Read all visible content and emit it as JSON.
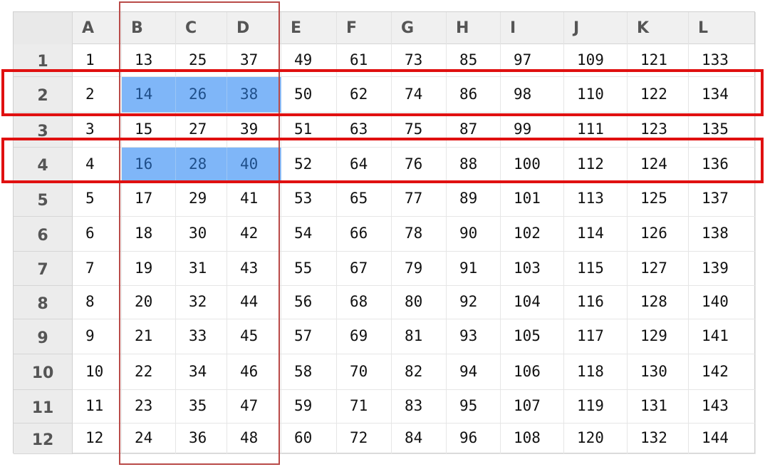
{
  "columns": [
    "A",
    "B",
    "C",
    "D",
    "E",
    "F",
    "G",
    "H",
    "I",
    "J",
    "K",
    "L"
  ],
  "rows": [
    {
      "label": "1",
      "values": [
        "1",
        "13",
        "25",
        "37",
        "49",
        "61",
        "73",
        "85",
        "97",
        "109",
        "121",
        "133"
      ]
    },
    {
      "label": "2",
      "values": [
        "2",
        "14",
        "26",
        "38",
        "50",
        "62",
        "74",
        "86",
        "98",
        "110",
        "122",
        "134"
      ]
    },
    {
      "label": "3",
      "values": [
        "3",
        "15",
        "27",
        "39",
        "51",
        "63",
        "75",
        "87",
        "99",
        "111",
        "123",
        "135"
      ]
    },
    {
      "label": "4",
      "values": [
        "4",
        "16",
        "28",
        "40",
        "52",
        "64",
        "76",
        "88",
        "100",
        "112",
        "124",
        "136"
      ]
    },
    {
      "label": "5",
      "values": [
        "5",
        "17",
        "29",
        "41",
        "53",
        "65",
        "77",
        "89",
        "101",
        "113",
        "125",
        "137"
      ]
    },
    {
      "label": "6",
      "values": [
        "6",
        "18",
        "30",
        "42",
        "54",
        "66",
        "78",
        "90",
        "102",
        "114",
        "126",
        "138"
      ]
    },
    {
      "label": "7",
      "values": [
        "7",
        "19",
        "31",
        "43",
        "55",
        "67",
        "79",
        "91",
        "103",
        "115",
        "127",
        "139"
      ]
    },
    {
      "label": "8",
      "values": [
        "8",
        "20",
        "32",
        "44",
        "56",
        "68",
        "80",
        "92",
        "104",
        "116",
        "128",
        "140"
      ]
    },
    {
      "label": "9",
      "values": [
        "9",
        "21",
        "33",
        "45",
        "57",
        "69",
        "81",
        "93",
        "105",
        "117",
        "129",
        "141"
      ]
    },
    {
      "label": "10",
      "values": [
        "10",
        "22",
        "34",
        "46",
        "58",
        "70",
        "82",
        "94",
        "106",
        "118",
        "130",
        "142"
      ]
    },
    {
      "label": "11",
      "values": [
        "11",
        "23",
        "35",
        "47",
        "59",
        "71",
        "83",
        "95",
        "107",
        "119",
        "131",
        "143"
      ]
    },
    {
      "label": "12",
      "values": [
        "12",
        "24",
        "36",
        "48",
        "60",
        "72",
        "84",
        "96",
        "108",
        "120",
        "132",
        "144"
      ]
    }
  ],
  "selection": {
    "cells": [
      "B2",
      "C2",
      "D2",
      "B4",
      "C4",
      "D4"
    ],
    "fill_color": "#7fb6f8"
  },
  "highlights": [
    {
      "name": "column-highlight",
      "covers": "B:D",
      "color": "#b94a48"
    },
    {
      "name": "row-2-highlight",
      "covers": "2",
      "color": "#e01010"
    },
    {
      "name": "row-4-highlight",
      "covers": "4",
      "color": "#e01010"
    }
  ]
}
